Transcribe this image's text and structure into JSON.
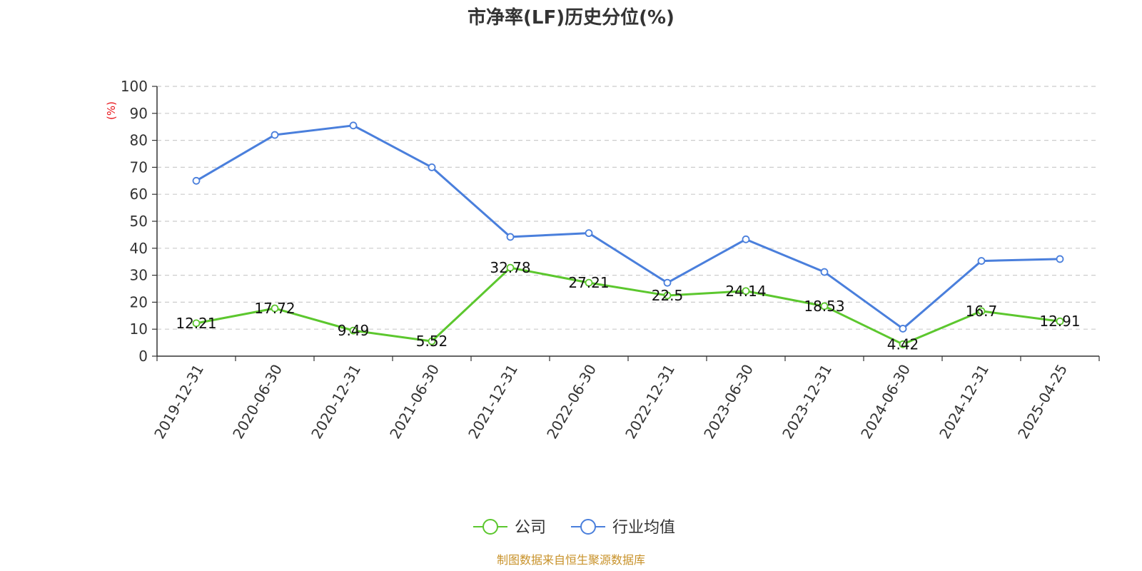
{
  "chart_data": {
    "type": "line",
    "title": "市净率(LF)历史分位(%)",
    "ylabel": "(%)",
    "ylim": [
      0,
      100
    ],
    "yticks": [
      0,
      10,
      20,
      30,
      40,
      50,
      60,
      70,
      80,
      90,
      100
    ],
    "grid": true,
    "legend_position": "bottom-center",
    "categories": [
      "2019-12-31",
      "2020-06-30",
      "2020-12-31",
      "2021-06-30",
      "2021-12-31",
      "2022-06-30",
      "2022-12-31",
      "2023-06-30",
      "2023-12-31",
      "2024-06-30",
      "2024-12-31",
      "2025-04-25"
    ],
    "series": [
      {
        "name": "公司",
        "color": "#5cc72e",
        "values": [
          12.21,
          17.72,
          9.49,
          5.52,
          32.78,
          27.21,
          22.5,
          24.14,
          18.53,
          4.42,
          16.7,
          12.91
        ],
        "labels": [
          "12.21",
          "17.72",
          "9.49",
          "5.52",
          "32.78",
          "27.21",
          "22.5",
          "24.14",
          "18.53",
          "4.42",
          "16.7",
          "12.91"
        ]
      },
      {
        "name": "行业均值",
        "color": "#4a7fdc",
        "values": [
          65,
          82,
          85.5,
          70,
          44.2,
          45.6,
          27.2,
          43.3,
          31.2,
          10.2,
          35.3,
          36
        ]
      }
    ],
    "source": "制图数据来自恒生聚源数据库"
  }
}
